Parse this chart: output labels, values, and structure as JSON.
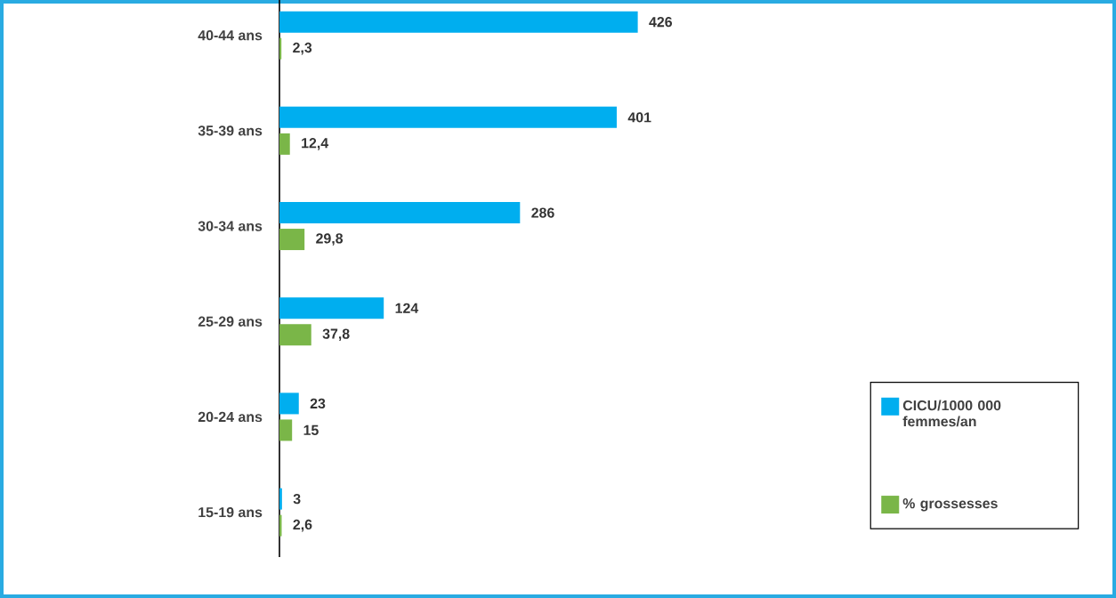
{
  "chart_data": {
    "type": "bar",
    "orientation": "horizontal",
    "categories": [
      "40-44 ans",
      "35-39 ans",
      "30-34 ans",
      "25-29 ans",
      "20-24 ans",
      "15-19 ans"
    ],
    "series": [
      {
        "name": "CICU/1000 000 femmes/an",
        "color": "#00aeef",
        "values": [
          426,
          401,
          286,
          124,
          23,
          3
        ],
        "value_labels": [
          "426",
          "401",
          "286",
          "124",
          "23",
          "3"
        ]
      },
      {
        "name": "% grossesses",
        "color": "#7ab648",
        "values": [
          2.3,
          12.4,
          29.8,
          37.8,
          15,
          2.6
        ],
        "value_labels": [
          "2,3",
          "12,4",
          "29,8",
          "37,8",
          "15",
          "2,6"
        ]
      }
    ],
    "legend": "bottom right"
  }
}
